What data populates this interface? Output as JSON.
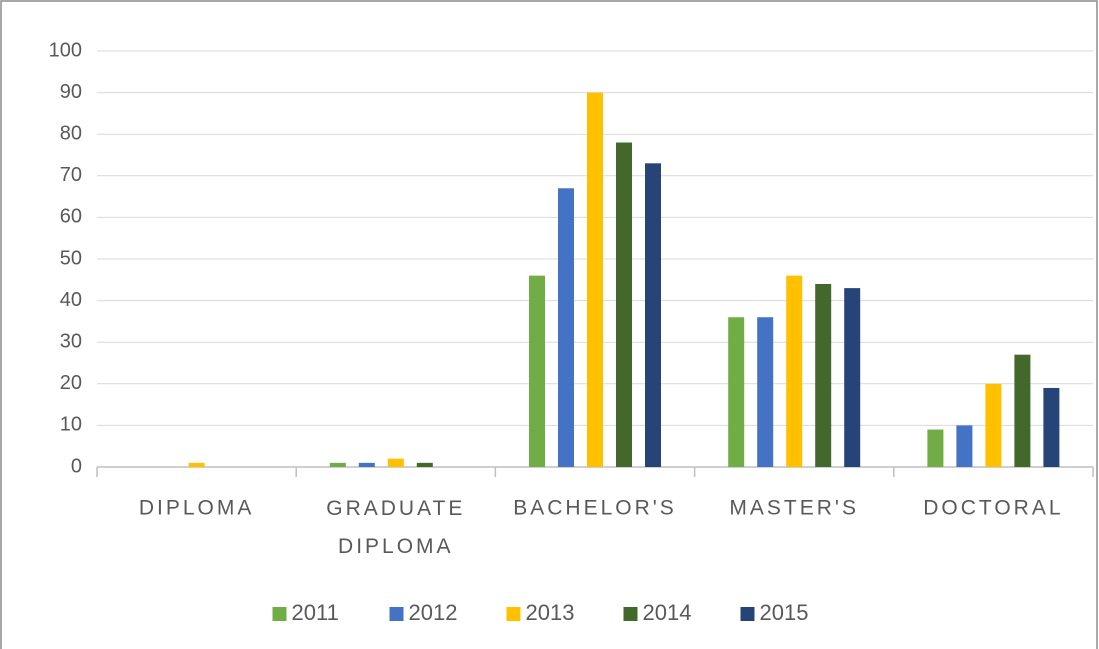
{
  "chart_data": {
    "type": "bar",
    "categories": [
      "DIPLOMA",
      "GRADUATE DIPLOMA",
      "BACHELOR'S",
      "MASTER'S",
      "DOCTORAL"
    ],
    "series": [
      {
        "name": "2011",
        "color": "#70ad47",
        "values": [
          0,
          1,
          46,
          36,
          9
        ]
      },
      {
        "name": "2012",
        "color": "#4472c4",
        "values": [
          0,
          1,
          67,
          36,
          10
        ]
      },
      {
        "name": "2013",
        "color": "#ffc000",
        "values": [
          1,
          2,
          90,
          46,
          20
        ]
      },
      {
        "name": "2014",
        "color": "#43682b",
        "values": [
          0,
          1,
          78,
          44,
          27
        ]
      },
      {
        "name": "2015",
        "color": "#264478",
        "values": [
          0,
          0,
          73,
          43,
          19
        ]
      }
    ],
    "ylim": [
      0,
      100
    ],
    "yticks": [
      0,
      10,
      20,
      30,
      40,
      50,
      60,
      70,
      80,
      90,
      100
    ],
    "grid": true,
    "legend": "bottom"
  }
}
